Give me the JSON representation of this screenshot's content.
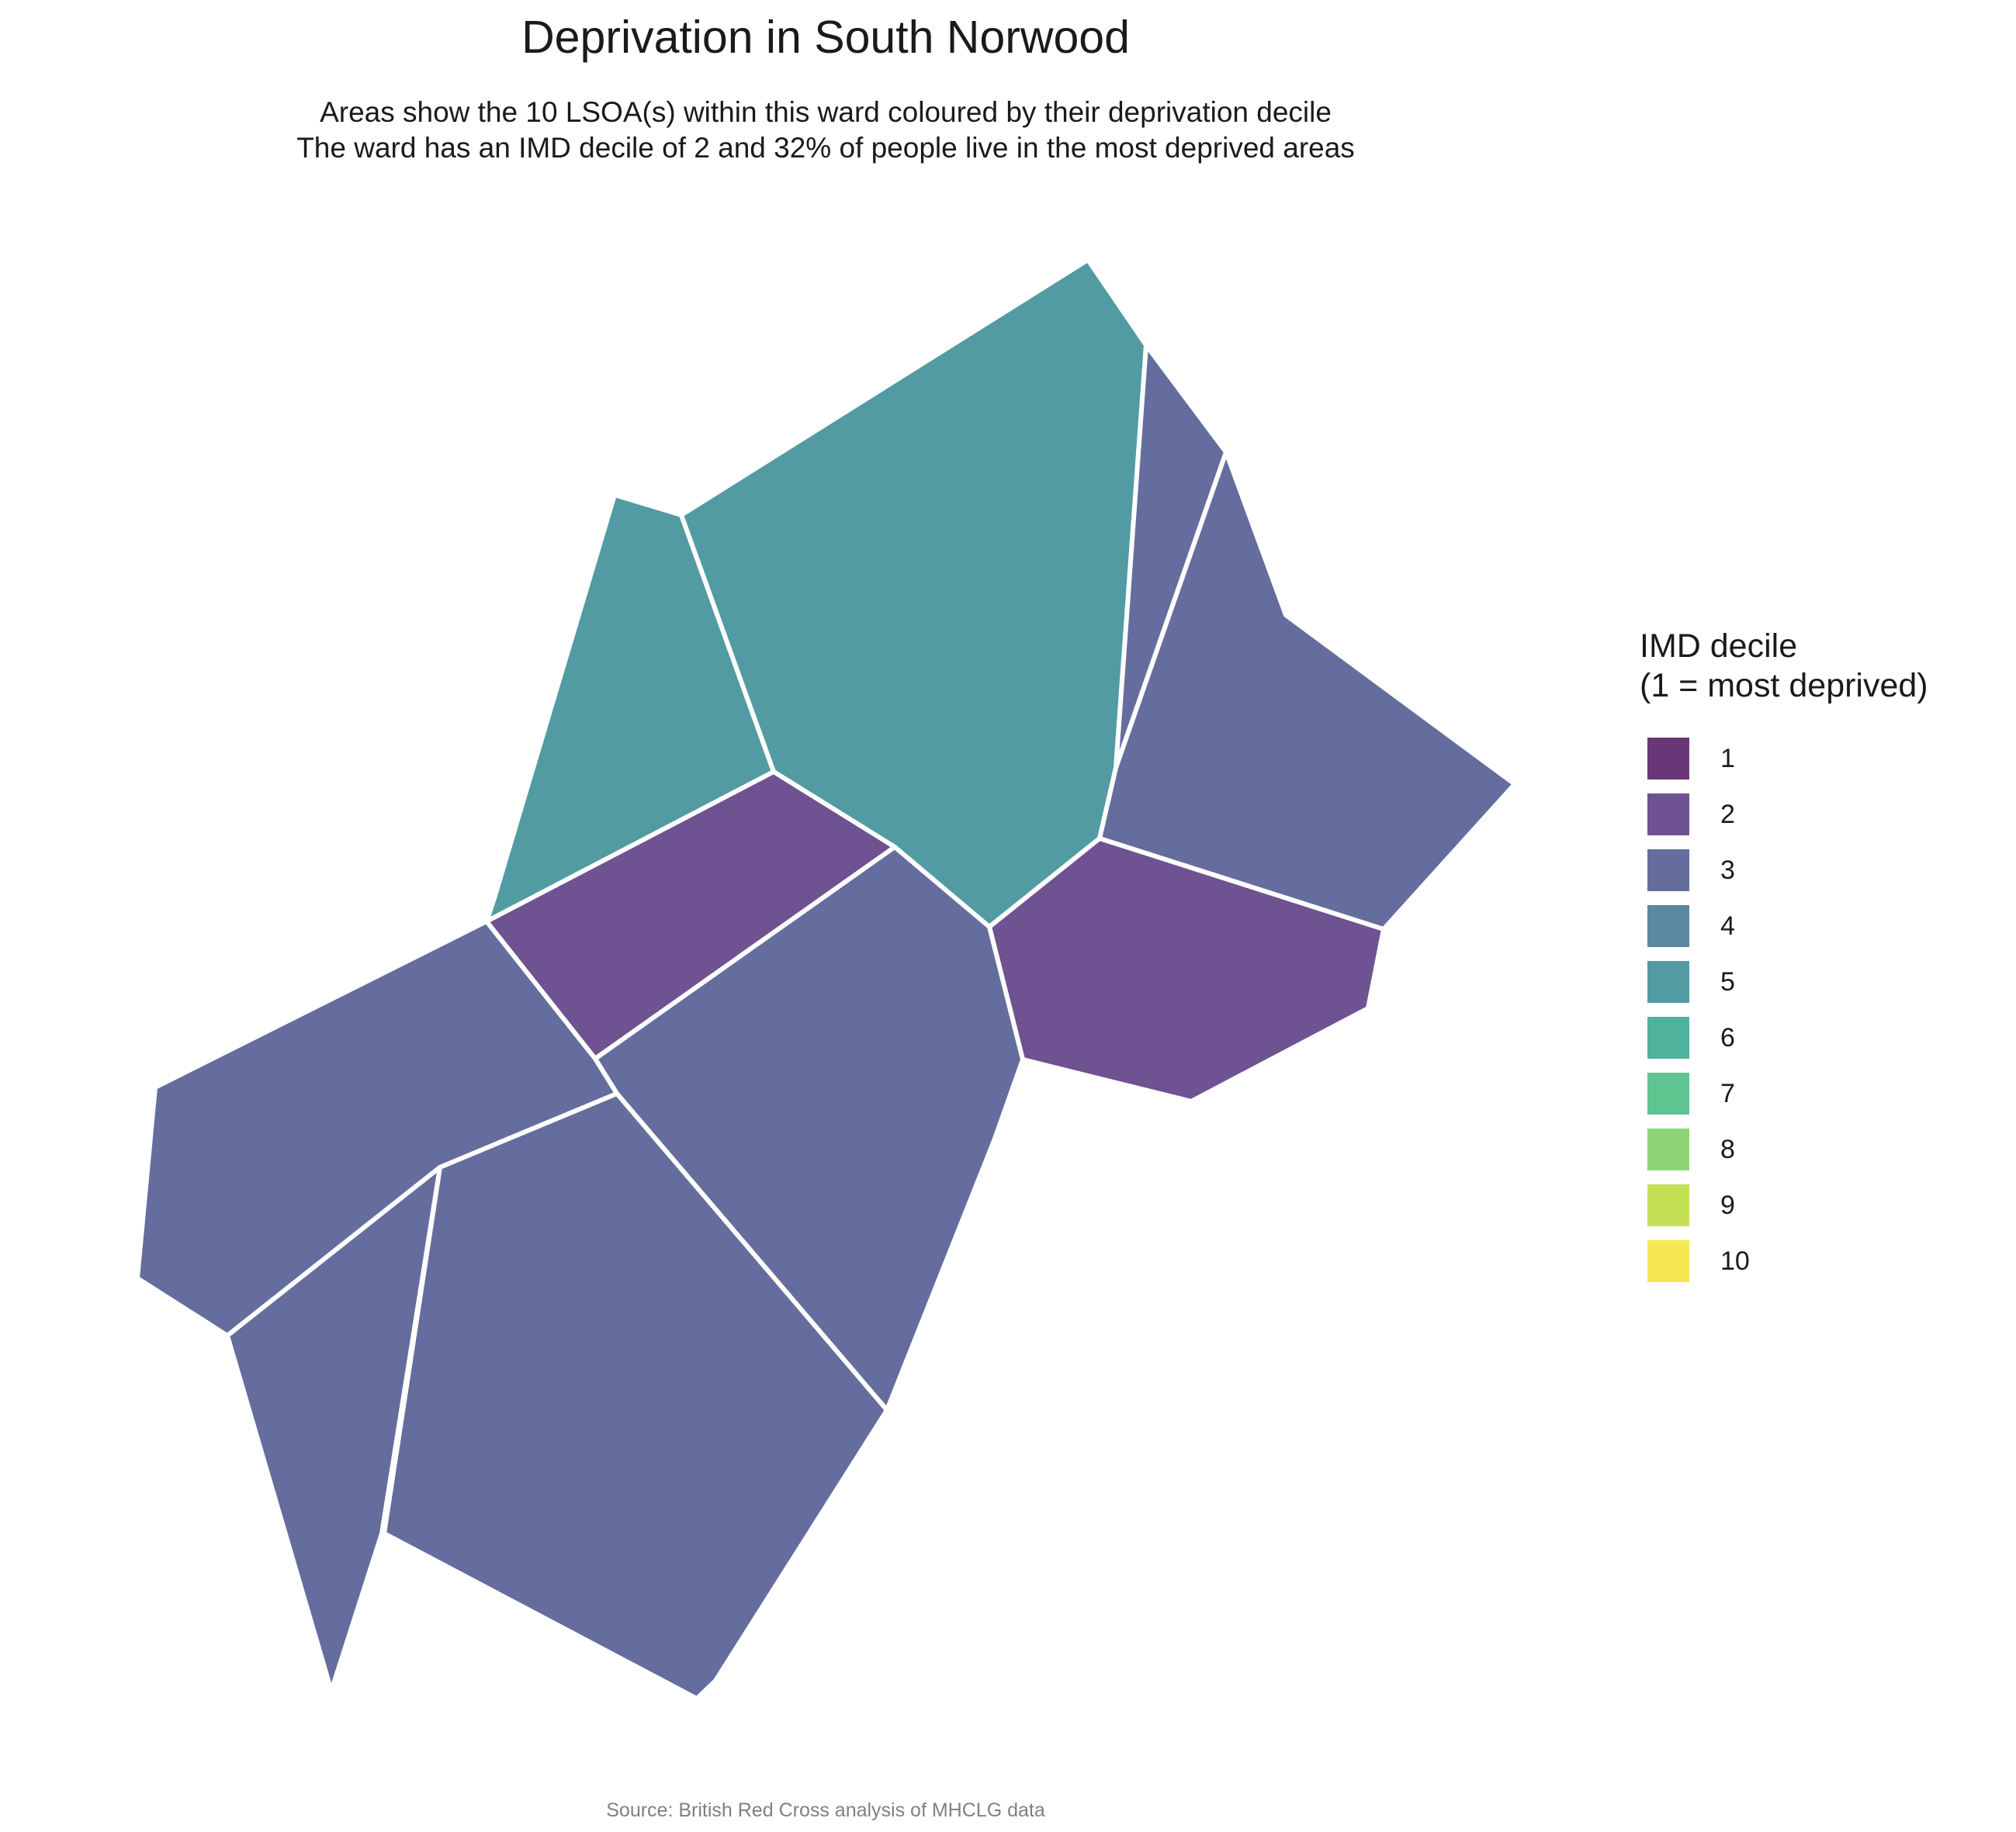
{
  "title": "Deprivation in South Norwood",
  "subtitle": [
    "Areas show the 10 LSOA(s) within this ward coloured by their deprivation decile",
    "The ward has an IMD decile of 2 and 32% of people live in the most deprived areas"
  ],
  "legend": {
    "title_lines": [
      "IMD decile",
      "(1 = most deprived)"
    ],
    "items": [
      {
        "label": "1",
        "color": "#6a3678"
      },
      {
        "label": "2",
        "color": "#6e5291"
      },
      {
        "label": "3",
        "color": "#646d9e"
      },
      {
        "label": "4",
        "color": "#5a87a2"
      },
      {
        "label": "5",
        "color": "#529ba2"
      },
      {
        "label": "6",
        "color": "#4fb29c"
      },
      {
        "label": "7",
        "color": "#5ec490"
      },
      {
        "label": "8",
        "color": "#8ed376"
      },
      {
        "label": "9",
        "color": "#c4e155"
      },
      {
        "label": "10",
        "color": "#f6e852"
      }
    ]
  },
  "areas": [
    {
      "id": "lsoa-northwest",
      "decile": 5
    },
    {
      "id": "lsoa-north-large",
      "decile": 5
    },
    {
      "id": "lsoa-northeast-sliver",
      "decile": 3
    },
    {
      "id": "lsoa-east",
      "decile": 3
    },
    {
      "id": "lsoa-west-central",
      "decile": 2
    },
    {
      "id": "lsoa-southeast",
      "decile": 2
    },
    {
      "id": "lsoa-central",
      "decile": 3
    },
    {
      "id": "lsoa-west",
      "decile": 3
    },
    {
      "id": "lsoa-southwest-spike",
      "decile": 3
    },
    {
      "id": "lsoa-south",
      "decile": 3
    }
  ],
  "caption": "Source: British Red Cross analysis of MHCLG data"
}
